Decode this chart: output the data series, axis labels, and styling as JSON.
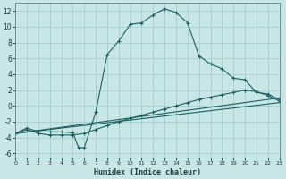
{
  "xlabel": "Humidex (Indice chaleur)",
  "bg_color": "#c8e6e6",
  "grid_color": "#a0c8c8",
  "line_color": "#1a6060",
  "xlim": [
    0,
    23
  ],
  "ylim": [
    -6.5,
    13.0
  ],
  "yticks": [
    -6,
    -4,
    -2,
    0,
    2,
    4,
    6,
    8,
    10,
    12
  ],
  "xticks": [
    0,
    1,
    2,
    3,
    4,
    5,
    6,
    7,
    8,
    9,
    10,
    11,
    12,
    13,
    14,
    15,
    16,
    17,
    18,
    19,
    20,
    21,
    22,
    23
  ],
  "main_x": [
    0,
    1,
    2,
    3,
    4,
    5,
    5.5,
    6,
    7,
    8,
    9,
    10,
    11,
    12,
    13,
    14,
    15,
    16,
    17,
    18,
    19,
    20,
    21,
    22,
    23
  ],
  "main_y": [
    -3.5,
    -2.8,
    -3.3,
    -3.3,
    -3.3,
    -3.4,
    -5.3,
    -5.3,
    -0.8,
    6.5,
    8.2,
    10.3,
    10.5,
    11.5,
    12.3,
    11.8,
    10.5,
    6.3,
    5.3,
    4.7,
    3.5,
    3.3,
    1.7,
    1.5,
    0.8
  ],
  "line2_x": [
    0,
    1,
    2,
    3,
    4,
    5,
    6,
    7,
    8,
    9,
    10,
    11,
    12,
    13,
    14,
    15,
    16,
    17,
    18,
    19,
    20,
    21,
    22,
    23
  ],
  "line2_y": [
    -3.5,
    -3.0,
    -3.5,
    -3.7,
    -3.7,
    -3.7,
    -3.5,
    -3.0,
    -2.5,
    -2.0,
    -1.6,
    -1.2,
    -0.8,
    -0.4,
    0.0,
    0.4,
    0.8,
    1.1,
    1.4,
    1.7,
    2.0,
    1.8,
    1.3,
    0.6
  ],
  "line3_x": [
    0,
    23
  ],
  "line3_y": [
    -3.5,
    0.4
  ],
  "line4_x": [
    0,
    23
  ],
  "line4_y": [
    -3.5,
    1.0
  ]
}
